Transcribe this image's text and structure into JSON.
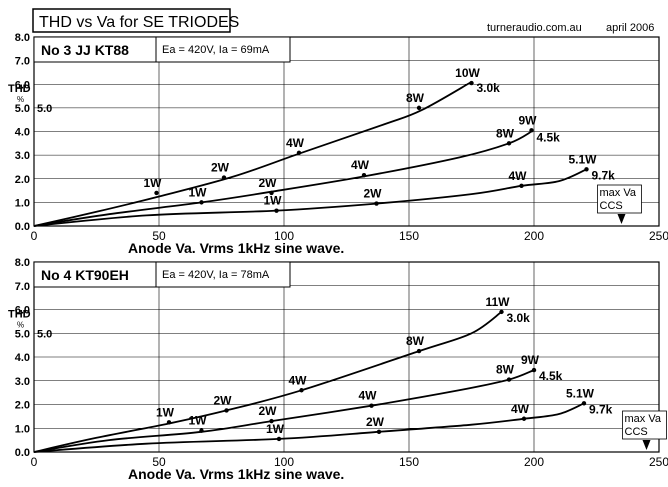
{
  "header": {
    "title": "THD vs Va for SE TRIODES",
    "site": "turneraudio.com.au",
    "date": "april 2006"
  },
  "chart_data": [
    {
      "type": "line",
      "title": "No 3  JJ KT88",
      "subtitle": "Ea = 420V, Ia = 69mA",
      "xlabel": "Anode Va. Vrms 1kHz sine wave.",
      "ylabel": "THD",
      "ylabel_unit": "%",
      "xlim": [
        0,
        250
      ],
      "ylim": [
        0,
        8
      ],
      "xticks": [
        "0",
        "50",
        "100",
        "150",
        "200",
        "250"
      ],
      "yticks": [
        "0.0",
        "1.0",
        "2.0",
        "3.0",
        "4.0",
        "5.0",
        "6.0",
        "7.0",
        "8.0"
      ],
      "ytick_extra": "5.0",
      "grid": true,
      "series": [
        {
          "name": "3.0k",
          "x": [
            0,
            25,
            50,
            80,
            107,
            140,
            155,
            175
          ],
          "y": [
            0,
            0.6,
            1.25,
            2.1,
            3.1,
            4.3,
            4.9,
            6.1
          ],
          "labels": [
            {
              "x": 49,
              "y": 1.4,
              "text": "1W"
            },
            {
              "x": 76,
              "y": 2.05,
              "text": "2W"
            },
            {
              "x": 106,
              "y": 3.1,
              "text": "4W"
            },
            {
              "x": 154,
              "y": 5.0,
              "text": "8W"
            },
            {
              "x": 175,
              "y": 6.05,
              "text": "10W"
            }
          ]
        },
        {
          "name": "4.5k",
          "x": [
            0,
            30,
            67,
            95,
            132,
            170,
            190,
            199
          ],
          "y": [
            0,
            0.5,
            1.0,
            1.45,
            2.1,
            2.9,
            3.5,
            4.0
          ],
          "labels": [
            {
              "x": 67,
              "y": 1.0,
              "text": "1W"
            },
            {
              "x": 95,
              "y": 1.4,
              "text": "2W"
            },
            {
              "x": 132,
              "y": 2.15,
              "text": "4W"
            },
            {
              "x": 190,
              "y": 3.5,
              "text": "8W"
            },
            {
              "x": 199,
              "y": 4.05,
              "text": "9W"
            }
          ]
        },
        {
          "name": "9.7k",
          "x": [
            0,
            45,
            97,
            137,
            175,
            195,
            210,
            221
          ],
          "y": [
            0,
            0.45,
            0.65,
            0.95,
            1.35,
            1.7,
            1.9,
            2.4
          ],
          "labels": [
            {
              "x": 97,
              "y": 0.65,
              "text": "1W"
            },
            {
              "x": 137,
              "y": 0.95,
              "text": "2W"
            },
            {
              "x": 195,
              "y": 1.7,
              "text": "4W"
            },
            {
              "x": 221,
              "y": 2.4,
              "text": "5.1W"
            }
          ]
        }
      ],
      "annotation": {
        "line1": "max Va",
        "line2": "CCS",
        "x": 235
      }
    },
    {
      "type": "line",
      "title": "No 4  KT90EH",
      "subtitle": "Ea = 420V, Ia = 78mA",
      "xlabel": "Anode Va. Vrms 1kHz sine wave.",
      "ylabel": "THD",
      "ylabel_unit": "%",
      "xlim": [
        0,
        250
      ],
      "ylim": [
        0,
        8
      ],
      "xticks": [
        "0",
        "50",
        "100",
        "150",
        "200",
        "250"
      ],
      "yticks": [
        "0.0",
        "1.0",
        "2.0",
        "3.0",
        "4.0",
        "5.0",
        "6.0",
        "7.0",
        "8.0"
      ],
      "ytick_extra": "5.0",
      "grid": true,
      "series": [
        {
          "name": "3.0k",
          "x": [
            0,
            25,
            54,
            77,
            107,
            154,
            175,
            187
          ],
          "y": [
            0,
            0.6,
            1.2,
            1.75,
            2.6,
            4.25,
            5.0,
            5.9
          ],
          "labels": [
            {
              "x": 54,
              "y": 1.25,
              "text": "1W"
            },
            {
              "x": 77,
              "y": 1.75,
              "text": "2W"
            },
            {
              "x": 107,
              "y": 2.6,
              "text": "4W"
            },
            {
              "x": 154,
              "y": 4.25,
              "text": "8W"
            },
            {
              "x": 187,
              "y": 5.9,
              "text": "11W"
            }
          ]
        },
        {
          "name": "4.5k",
          "x": [
            0,
            30,
            67,
            95,
            135,
            170,
            190,
            200
          ],
          "y": [
            0,
            0.5,
            0.85,
            1.3,
            1.95,
            2.6,
            3.05,
            3.45
          ],
          "labels": [
            {
              "x": 67,
              "y": 0.9,
              "text": "1W"
            },
            {
              "x": 95,
              "y": 1.3,
              "text": "2W"
            },
            {
              "x": 135,
              "y": 1.95,
              "text": "4W"
            },
            {
              "x": 190,
              "y": 3.05,
              "text": "8W"
            },
            {
              "x": 200,
              "y": 3.45,
              "text": "9W"
            }
          ]
        },
        {
          "name": "9.7k",
          "x": [
            0,
            45,
            98,
            138,
            175,
            196,
            210,
            220
          ],
          "y": [
            0,
            0.35,
            0.55,
            0.85,
            1.15,
            1.4,
            1.6,
            2.05
          ],
          "labels": [
            {
              "x": 98,
              "y": 0.55,
              "text": "1W"
            },
            {
              "x": 138,
              "y": 0.85,
              "text": "2W"
            },
            {
              "x": 196,
              "y": 1.4,
              "text": "4W"
            },
            {
              "x": 220,
              "y": 2.05,
              "text": "5.1W"
            }
          ]
        }
      ],
      "annotation": {
        "line1": "max Va",
        "line2": "CCS",
        "x": 245
      }
    }
  ]
}
